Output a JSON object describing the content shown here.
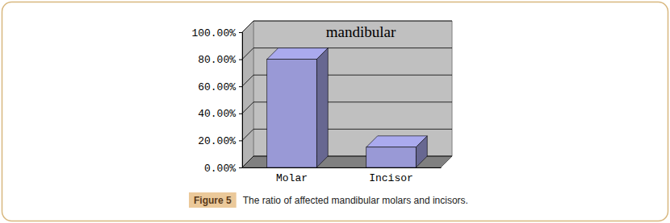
{
  "chart_data": {
    "type": "bar",
    "title": "mandibular",
    "categories": [
      "Molar",
      "Incisor"
    ],
    "values": [
      80,
      15
    ],
    "color": "#9999d6",
    "ylim": [
      0,
      100
    ],
    "yticks": [
      {
        "value": 0,
        "label": "0.00%"
      },
      {
        "value": 20,
        "label": "20.00%"
      },
      {
        "value": 40,
        "label": "40.00%"
      },
      {
        "value": 60,
        "label": "60.00%"
      },
      {
        "value": 80,
        "label": "80.00%"
      },
      {
        "value": 100,
        "label": "100.00%"
      }
    ],
    "grid": true
  },
  "figure": {
    "label": "Figure 5",
    "caption": "The ratio of affected mandibular molars and incisors."
  }
}
